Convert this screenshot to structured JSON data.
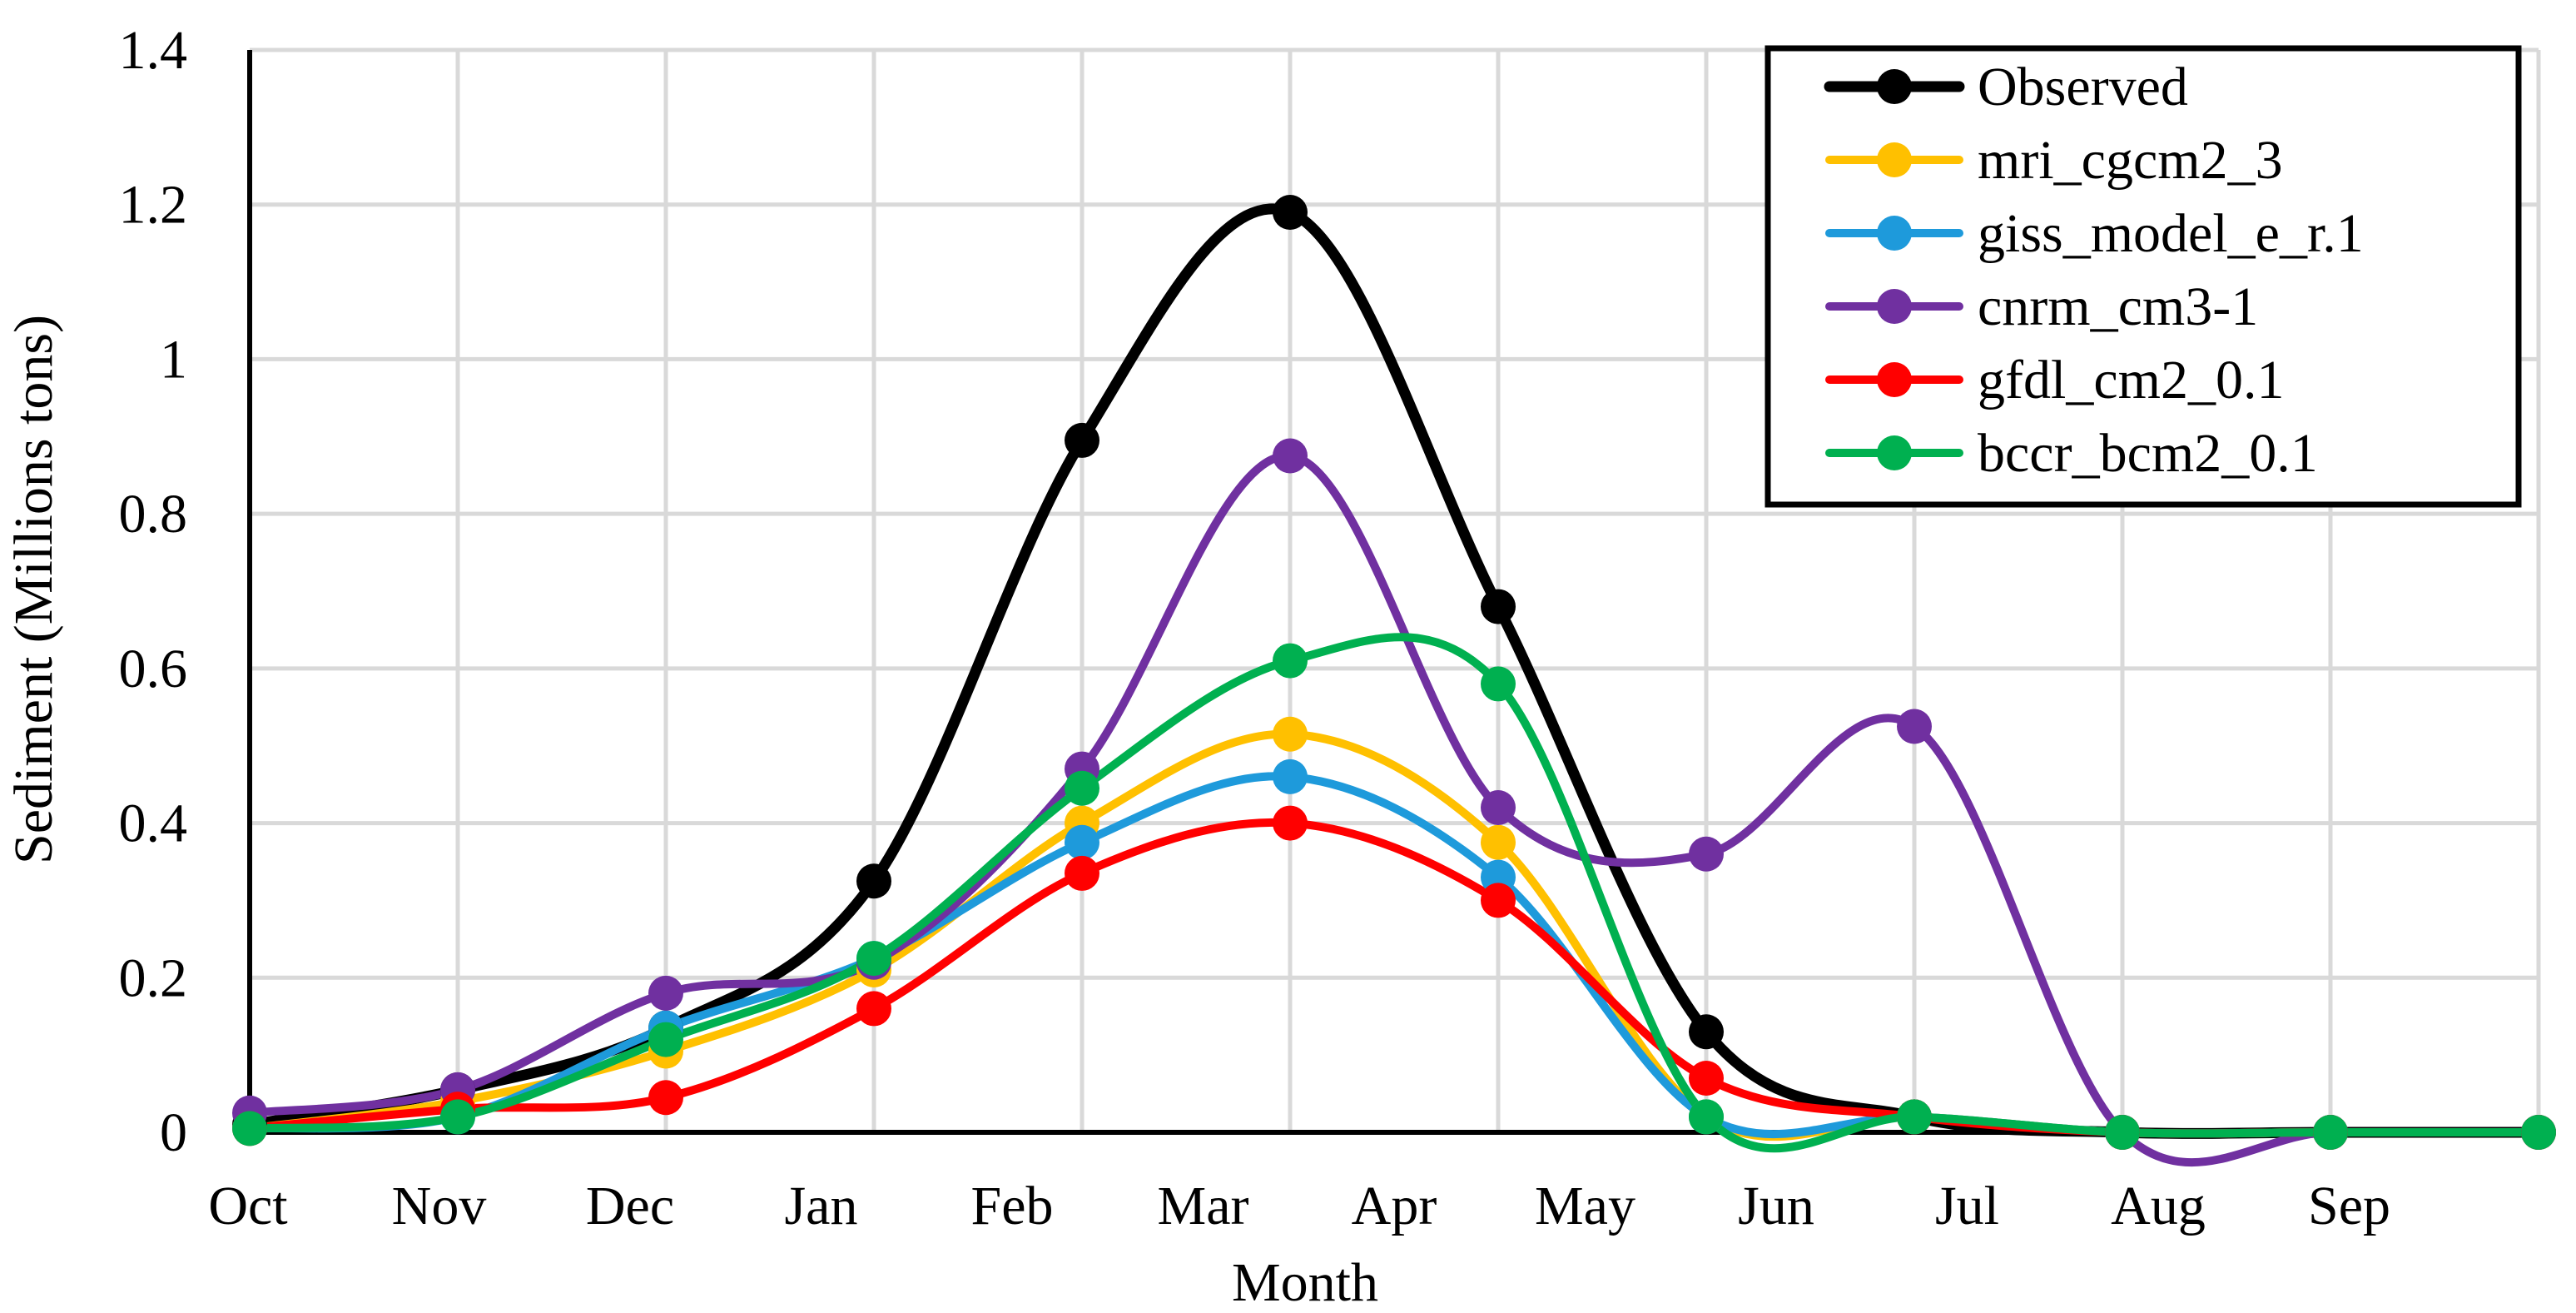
{
  "chart_data": {
    "type": "line",
    "title": "",
    "xlabel": "Month",
    "ylabel": "Sediment (Millions tons)",
    "ylim": [
      0,
      1.4
    ],
    "yticks": [
      "0",
      "0.2",
      "0.4",
      "0.6",
      "0.8",
      "1",
      "1.2",
      "1.4"
    ],
    "ytick_values": [
      0,
      0.2,
      0.4,
      0.6,
      0.8,
      1.0,
      1.2,
      1.4
    ],
    "xlim": [
      0,
      11
    ],
    "xtick_labels": [
      "Oct",
      "Nov",
      "Dec",
      "Jan",
      "Feb",
      "Mar",
      "Apr",
      "May",
      "Jun",
      "Jul",
      "Aug",
      "Sep"
    ],
    "grid": true,
    "legend_position": "top-right",
    "series": [
      {
        "name": "Observed",
        "color": "#000000",
        "x": [
          0,
          1,
          2,
          3,
          4,
          5,
          6,
          7,
          8,
          9,
          10,
          11
        ],
        "values": [
          0.01,
          0.055,
          0.135,
          0.325,
          0.895,
          1.19,
          0.68,
          0.13,
          0.02,
          0.0,
          0.0,
          0.0
        ]
      },
      {
        "name": "mri_cgcm2_3",
        "color": "#FFC000",
        "x": [
          0,
          1,
          2,
          3,
          4,
          5,
          6,
          7,
          8,
          9,
          10,
          11
        ],
        "values": [
          0.005,
          0.04,
          0.105,
          0.21,
          0.4,
          0.515,
          0.375,
          0.02,
          0.02,
          0.0,
          0.0,
          0.0
        ]
      },
      {
        "name": "giss_model_e_r.1",
        "color": "#1E9ADB",
        "x": [
          0,
          1,
          2,
          3,
          4,
          5,
          6,
          7,
          8,
          9,
          10,
          11
        ],
        "values": [
          0.005,
          0.02,
          0.135,
          0.225,
          0.375,
          0.46,
          0.33,
          0.02,
          0.02,
          0.0,
          0.0,
          0.0
        ]
      },
      {
        "name": "cnrm_cm3-1",
        "color": "#7030A0",
        "x": [
          0,
          1,
          2,
          3,
          4,
          5,
          6,
          7,
          8,
          9,
          10,
          11
        ],
        "values": [
          0.025,
          0.055,
          0.18,
          0.22,
          0.47,
          0.875,
          0.42,
          0.36,
          0.525,
          0.0,
          0.0,
          0.0
        ]
      },
      {
        "name": "gfdl_cm2_0.1",
        "color": "#FF0000",
        "x": [
          0,
          1,
          2,
          3,
          4,
          5,
          6,
          7,
          8,
          9,
          10,
          11
        ],
        "values": [
          0.005,
          0.03,
          0.045,
          0.16,
          0.335,
          0.4,
          0.3,
          0.07,
          0.02,
          0.0,
          0.0,
          0.0
        ]
      },
      {
        "name": "bccr_bcm2_0.1",
        "color": "#00B050",
        "x": [
          0,
          1,
          2,
          3,
          4,
          5,
          6,
          7,
          8,
          9,
          10,
          11
        ],
        "values": [
          0.005,
          0.02,
          0.12,
          0.225,
          0.445,
          0.61,
          0.58,
          0.02,
          0.02,
          0.0,
          0.0,
          0.0
        ]
      }
    ]
  }
}
